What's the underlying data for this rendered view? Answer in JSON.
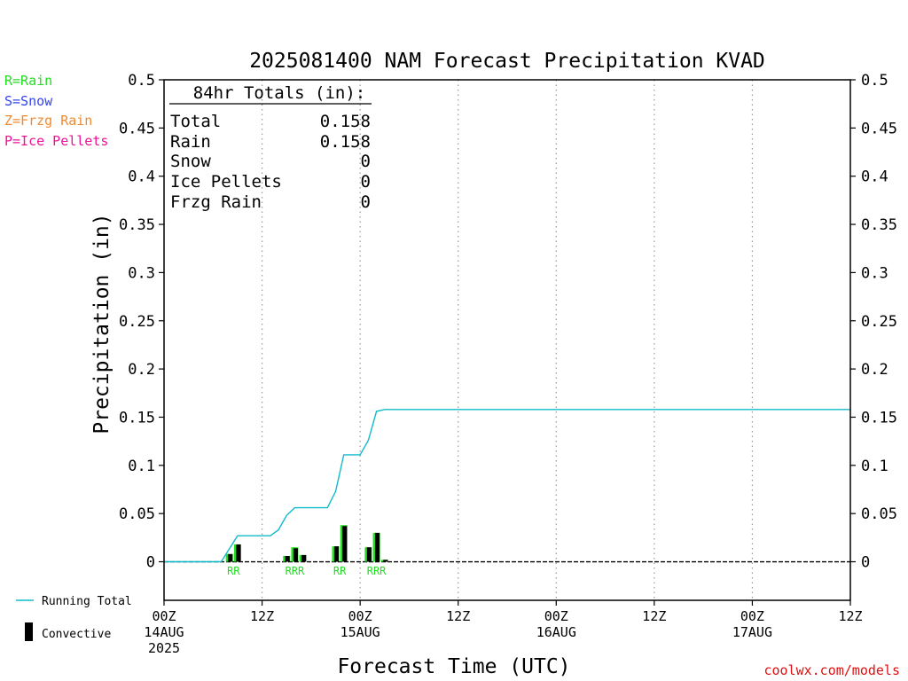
{
  "chart_data": {
    "type": "bar",
    "title": "2025081400 NAM Forecast Precipitation KVAD",
    "xlabel": "Forecast Time (UTC)",
    "ylabel": "Precipitation (in)",
    "ylim": [
      -0.04,
      0.5
    ],
    "xlim": [
      0,
      84
    ],
    "yticks": [
      0,
      0.05,
      0.1,
      0.15,
      0.2,
      0.25,
      0.3,
      0.35,
      0.4,
      0.45,
      0.5
    ],
    "ytick_labels": [
      "0",
      "0.05",
      "0.1",
      "0.15",
      "0.2",
      "0.25",
      "0.3",
      "0.35",
      "0.4",
      "0.45",
      "0.5"
    ],
    "xticks": [
      0,
      12,
      24,
      36,
      48,
      60,
      72,
      84
    ],
    "xtick_labels": [
      [
        "00Z",
        "14AUG",
        "2025"
      ],
      [
        "12Z"
      ],
      [
        "00Z",
        "15AUG"
      ],
      [
        "12Z"
      ],
      [
        "00Z",
        "16AUG"
      ],
      [
        "12Z"
      ],
      [
        "00Z",
        "17AUG"
      ],
      [
        "12Z"
      ]
    ],
    "grid": "vertical dotted at 12-hour ticks",
    "legend_placement": "left",
    "rain_bars": [
      {
        "hour": 8,
        "value": 0.008
      },
      {
        "hour": 9,
        "value": 0.018
      },
      {
        "hour": 15,
        "value": 0.006
      },
      {
        "hour": 16,
        "value": 0.015
      },
      {
        "hour": 17,
        "value": 0.007
      },
      {
        "hour": 21,
        "value": 0.016
      },
      {
        "hour": 22,
        "value": 0.038
      },
      {
        "hour": 25,
        "value": 0.015
      },
      {
        "hour": 26,
        "value": 0.03
      },
      {
        "hour": 27,
        "value": 0.002
      }
    ],
    "convective_bars": [
      {
        "hour": 8,
        "value": 0.008
      },
      {
        "hour": 9,
        "value": 0.018
      },
      {
        "hour": 15,
        "value": 0.006
      },
      {
        "hour": 16,
        "value": 0.014
      },
      {
        "hour": 17,
        "value": 0.007
      },
      {
        "hour": 21,
        "value": 0.016
      },
      {
        "hour": 22,
        "value": 0.037
      },
      {
        "hour": 25,
        "value": 0.015
      },
      {
        "hour": 26,
        "value": 0.03
      },
      {
        "hour": 27,
        "value": 0.002
      }
    ],
    "running_total": {
      "x": [
        0,
        7,
        9,
        13,
        14,
        15,
        16,
        17,
        20,
        21,
        22,
        24,
        25,
        26,
        27,
        84
      ],
      "y": [
        0,
        0,
        0.027,
        0.027,
        0.033,
        0.048,
        0.056,
        0.056,
        0.056,
        0.073,
        0.111,
        0.111,
        0.126,
        0.156,
        0.158,
        0.158
      ]
    },
    "type_markers": [
      {
        "hour": 8.5,
        "text": "RR"
      },
      {
        "hour": 16,
        "text": "RRR"
      },
      {
        "hour": 21.5,
        "text": "RR"
      },
      {
        "hour": 26,
        "text": "RRR"
      }
    ],
    "totals": {
      "heading": "84hr Totals (in):",
      "rows": [
        {
          "label": "Total",
          "value": "0.158"
        },
        {
          "label": "Rain",
          "value": "0.158"
        },
        {
          "label": "Snow",
          "value": "0"
        },
        {
          "label": "Ice Pellets",
          "value": "0"
        },
        {
          "label": "Frzg Rain",
          "value": "0"
        }
      ]
    },
    "type_legend": [
      {
        "text": "R=Rain",
        "color": "#22dd22"
      },
      {
        "text": "S=Snow",
        "color": "#3344ee"
      },
      {
        "text": "Z=Frzg Rain",
        "color": "#f08a30"
      },
      {
        "text": "P=Ice Pellets",
        "color": "#ee1199"
      }
    ],
    "series_legend": [
      {
        "name": "Running Total",
        "color": "#11bbcc"
      },
      {
        "name": "Convective",
        "color": "#000000"
      }
    ],
    "colors": {
      "rain": "#22dd22",
      "convective": "#000000",
      "running_total": "#11bbcc",
      "credit": "#dd1111"
    }
  },
  "credit": "coolwx.com/models"
}
